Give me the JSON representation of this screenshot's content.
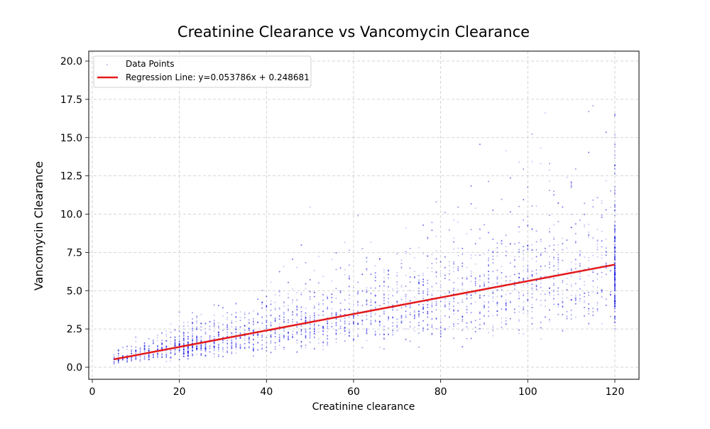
{
  "chart_data": {
    "type": "scatter",
    "title": "Creatinine Clearance vs Vancomycin Clearance",
    "xlabel": "Creatinine clearance",
    "ylabel": "Vancomycin Clearance",
    "xlim": [
      -1,
      126
    ],
    "ylim": [
      -0.7,
      20.7
    ],
    "xticks": [
      0,
      20,
      40,
      60,
      80,
      100,
      120
    ],
    "xtick_labels": [
      "0",
      "20",
      "40",
      "60",
      "80",
      "100",
      "120"
    ],
    "yticks": [
      0,
      2.5,
      5,
      7.5,
      10,
      12.5,
      15,
      17.5,
      20
    ],
    "ytick_labels": [
      "0.0",
      "2.5",
      "5.0",
      "7.5",
      "10.0",
      "12.5",
      "15.0",
      "17.5",
      "20.0"
    ],
    "grid": true,
    "legend_position": "top-left",
    "series": [
      {
        "name": "Data Points",
        "kind": "scatter",
        "color": "#0000dd",
        "x_range": [
          5,
          120
        ],
        "approx_count": 9000
      },
      {
        "name": "Regression Line: y=0.053786x + 0.248681",
        "kind": "line",
        "color": "#e31a1c",
        "slope": 0.053786,
        "intercept": 0.248681,
        "x": [
          5,
          120
        ]
      }
    ]
  }
}
